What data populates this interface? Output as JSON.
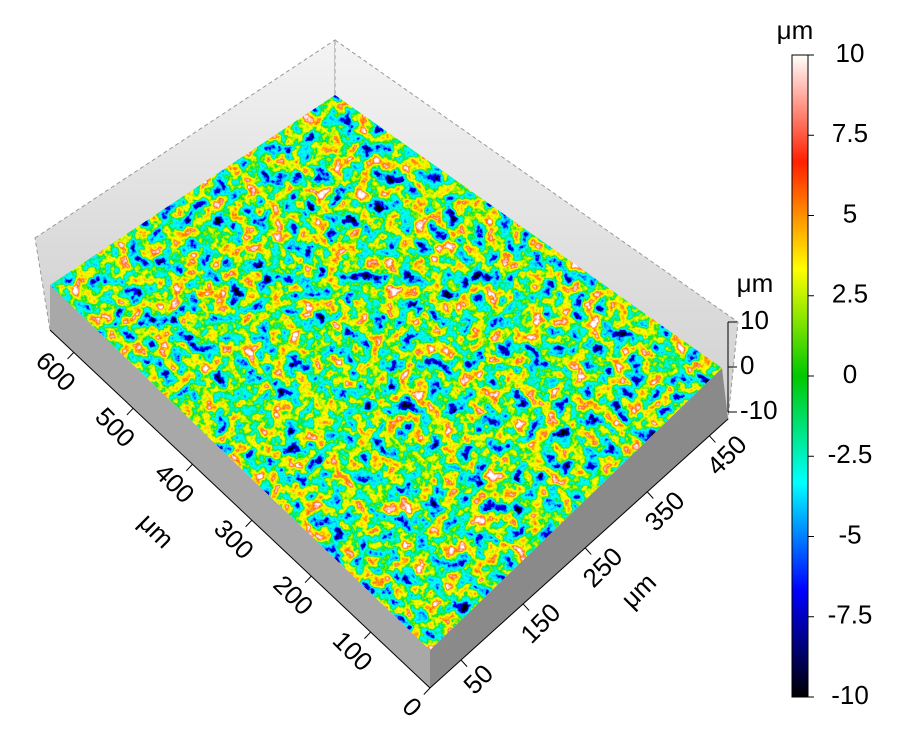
{
  "chart_data": {
    "type": "surface3d",
    "xlabel": "μm",
    "xlim": [
      0,
      640
    ],
    "xticks": [
      0,
      100,
      200,
      300,
      400,
      500,
      600
    ],
    "ylabel": "μm",
    "ylim": [
      0,
      480
    ],
    "yticks": [
      50,
      150,
      250,
      350,
      450
    ],
    "zlabel": "μm",
    "zlim": [
      -10,
      10
    ],
    "zticks": [
      -10,
      0,
      10
    ],
    "colorbar": {
      "label": "μm",
      "lim": [
        -10,
        10
      ],
      "ticks": [
        -10,
        -7.5,
        -5,
        -2.5,
        0,
        2.5,
        5,
        7.5,
        10
      ],
      "colors": [
        "#000000",
        "#0000ff",
        "#00ffff",
        "#00c800",
        "#ffff00",
        "#ff2000",
        "#ffffff"
      ]
    }
  }
}
